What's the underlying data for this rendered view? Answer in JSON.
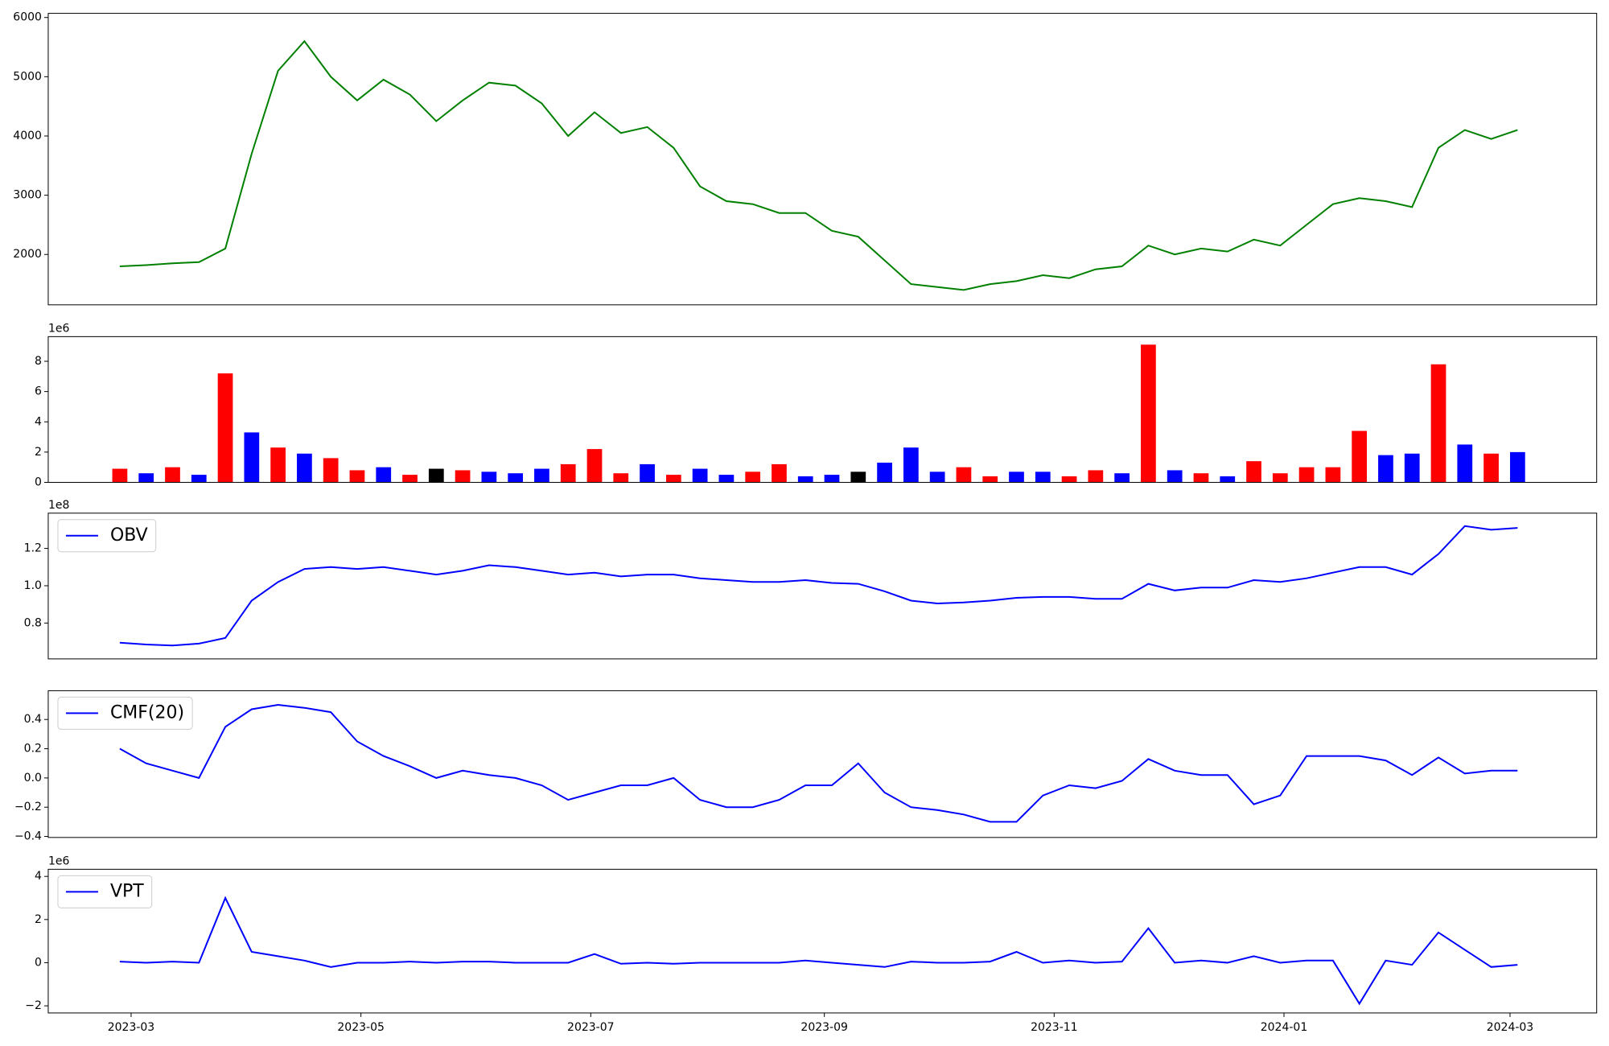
{
  "chart_data": [
    {
      "type": "line",
      "color": "green",
      "x": [
        "2023-02-26",
        "2023-03-05",
        "2023-03-12",
        "2023-03-19",
        "2023-03-26",
        "2023-04-02",
        "2023-04-09",
        "2023-04-16",
        "2023-04-23",
        "2023-04-30",
        "2023-05-07",
        "2023-05-14",
        "2023-05-21",
        "2023-05-28",
        "2023-06-04",
        "2023-06-11",
        "2023-06-18",
        "2023-06-25",
        "2023-07-02",
        "2023-07-09",
        "2023-07-16",
        "2023-07-23",
        "2023-07-30",
        "2023-08-06",
        "2023-08-13",
        "2023-08-20",
        "2023-08-27",
        "2023-09-03",
        "2023-09-10",
        "2023-09-17",
        "2023-09-24",
        "2023-10-01",
        "2023-10-08",
        "2023-10-15",
        "2023-10-22",
        "2023-10-29",
        "2023-11-05",
        "2023-11-12",
        "2023-11-19",
        "2023-11-26",
        "2023-12-03",
        "2023-12-10",
        "2023-12-17",
        "2023-12-24",
        "2023-12-31",
        "2024-01-07",
        "2024-01-14",
        "2024-01-21",
        "2024-01-28",
        "2024-02-04",
        "2024-02-11",
        "2024-02-18",
        "2024-02-25",
        "2024-03-03"
      ],
      "values": [
        1800,
        1820,
        1850,
        1870,
        2100,
        3700,
        5100,
        5600,
        5000,
        4600,
        4950,
        4700,
        4250,
        4600,
        4900,
        4850,
        4550,
        4000,
        4400,
        4050,
        4150,
        3800,
        3150,
        2900,
        2850,
        2700,
        2700,
        2400,
        2300,
        1900,
        1500,
        1450,
        1400,
        1500,
        1550,
        1650,
        1600,
        1750,
        1800,
        2150,
        2000,
        2100,
        2050,
        2250,
        2150,
        2500,
        2850,
        2950,
        2900,
        2800,
        3800,
        4100,
        3950,
        4100
      ],
      "xlim": [
        "2023-02-07",
        "2024-03-24"
      ],
      "ylim": [
        1150,
        6070
      ],
      "yticks": [
        2000,
        3000,
        4000,
        5000,
        6000
      ]
    },
    {
      "type": "bar",
      "y_offset_label": "1e6",
      "x": [
        "2023-02-26",
        "2023-03-05",
        "2023-03-12",
        "2023-03-19",
        "2023-03-26",
        "2023-04-02",
        "2023-04-09",
        "2023-04-16",
        "2023-04-23",
        "2023-04-30",
        "2023-05-07",
        "2023-05-14",
        "2023-05-21",
        "2023-05-28",
        "2023-06-04",
        "2023-06-11",
        "2023-06-18",
        "2023-06-25",
        "2023-07-02",
        "2023-07-09",
        "2023-07-16",
        "2023-07-23",
        "2023-07-30",
        "2023-08-06",
        "2023-08-13",
        "2023-08-20",
        "2023-08-27",
        "2023-09-03",
        "2023-09-10",
        "2023-09-17",
        "2023-09-24",
        "2023-10-01",
        "2023-10-08",
        "2023-10-15",
        "2023-10-22",
        "2023-10-29",
        "2023-11-05",
        "2023-11-12",
        "2023-11-19",
        "2023-11-26",
        "2023-12-03",
        "2023-12-10",
        "2023-12-17",
        "2023-12-24",
        "2023-12-31",
        "2024-01-07",
        "2024-01-14",
        "2024-01-21",
        "2024-01-28",
        "2024-02-04",
        "2024-02-11",
        "2024-02-18",
        "2024-02-25",
        "2024-03-03"
      ],
      "values": [
        0.9,
        0.6,
        1.0,
        0.5,
        7.2,
        3.3,
        2.3,
        1.9,
        1.6,
        0.8,
        1.0,
        0.5,
        0.9,
        0.8,
        0.7,
        0.6,
        0.9,
        1.2,
        2.2,
        0.6,
        1.2,
        0.5,
        0.9,
        0.5,
        0.7,
        1.2,
        0.4,
        0.5,
        0.7,
        1.3,
        2.3,
        0.7,
        1.0,
        0.4,
        0.7,
        0.7,
        0.4,
        0.8,
        0.6,
        9.1,
        0.8,
        0.6,
        0.4,
        1.4,
        0.6,
        1.0,
        1.0,
        3.4,
        1.8,
        1.9,
        7.8,
        2.5,
        1.9,
        2.0
      ],
      "colors": [
        "red",
        "blue",
        "red",
        "blue",
        "red",
        "blue",
        "red",
        "blue",
        "red",
        "red",
        "blue",
        "red",
        "black",
        "red",
        "blue",
        "blue",
        "blue",
        "red",
        "red",
        "red",
        "blue",
        "red",
        "blue",
        "blue",
        "red",
        "red",
        "blue",
        "blue",
        "black",
        "blue",
        "blue",
        "blue",
        "red",
        "red",
        "blue",
        "blue",
        "red",
        "red",
        "blue",
        "red",
        "blue",
        "red",
        "blue",
        "red",
        "red",
        "red",
        "red",
        "red",
        "blue",
        "blue",
        "red",
        "blue",
        "red",
        "blue"
      ],
      "xlim": [
        "2023-02-07",
        "2024-03-24"
      ],
      "ylim": [
        0,
        9.63
      ],
      "yticks": [
        0,
        2,
        4,
        6,
        8
      ]
    },
    {
      "type": "line",
      "y_offset_label": "1e8",
      "legend": "upper left",
      "x": [
        "2023-02-26",
        "2023-03-05",
        "2023-03-12",
        "2023-03-19",
        "2023-03-26",
        "2023-04-02",
        "2023-04-09",
        "2023-04-16",
        "2023-04-23",
        "2023-04-30",
        "2023-05-07",
        "2023-05-14",
        "2023-05-21",
        "2023-05-28",
        "2023-06-04",
        "2023-06-11",
        "2023-06-18",
        "2023-06-25",
        "2023-07-02",
        "2023-07-09",
        "2023-07-16",
        "2023-07-23",
        "2023-07-30",
        "2023-08-06",
        "2023-08-13",
        "2023-08-20",
        "2023-08-27",
        "2023-09-03",
        "2023-09-10",
        "2023-09-17",
        "2023-09-24",
        "2023-10-01",
        "2023-10-08",
        "2023-10-15",
        "2023-10-22",
        "2023-10-29",
        "2023-11-05",
        "2023-11-12",
        "2023-11-19",
        "2023-11-26",
        "2023-12-03",
        "2023-12-10",
        "2023-12-17",
        "2023-12-24",
        "2023-12-31",
        "2024-01-07",
        "2024-01-14",
        "2024-01-21",
        "2024-01-28",
        "2024-02-04",
        "2024-02-11",
        "2024-02-18",
        "2024-02-25",
        "2024-03-03"
      ],
      "series": [
        {
          "name": "OBV",
          "color": "blue",
          "values": [
            0.695,
            0.685,
            0.68,
            0.69,
            0.72,
            0.92,
            1.02,
            1.09,
            1.1,
            1.09,
            1.1,
            1.08,
            1.06,
            1.08,
            1.11,
            1.1,
            1.08,
            1.06,
            1.07,
            1.05,
            1.06,
            1.06,
            1.04,
            1.03,
            1.02,
            1.02,
            1.03,
            1.015,
            1.01,
            0.97,
            0.92,
            0.905,
            0.91,
            0.92,
            0.935,
            0.94,
            0.94,
            0.93,
            0.93,
            1.01,
            0.975,
            0.99,
            0.99,
            1.03,
            1.02,
            1.04,
            1.07,
            1.1,
            1.1,
            1.06,
            1.17,
            1.32,
            1.3,
            1.31
          ]
        }
      ],
      "xlim": [
        "2023-02-07",
        "2024-03-24"
      ],
      "ylim": [
        0.608,
        1.389
      ],
      "yticks": [
        {
          "value": 0.8,
          "label": "0.8"
        },
        {
          "value": 1.0,
          "label": "1.0"
        },
        {
          "value": 1.2,
          "label": "1.2"
        }
      ]
    },
    {
      "type": "line",
      "legend": "upper left",
      "x": [
        "2023-02-26",
        "2023-03-05",
        "2023-03-12",
        "2023-03-19",
        "2023-03-26",
        "2023-04-02",
        "2023-04-09",
        "2023-04-16",
        "2023-04-23",
        "2023-04-30",
        "2023-05-07",
        "2023-05-14",
        "2023-05-21",
        "2023-05-28",
        "2023-06-04",
        "2023-06-11",
        "2023-06-18",
        "2023-06-25",
        "2023-07-02",
        "2023-07-09",
        "2023-07-16",
        "2023-07-23",
        "2023-07-30",
        "2023-08-06",
        "2023-08-13",
        "2023-08-20",
        "2023-08-27",
        "2023-09-03",
        "2023-09-10",
        "2023-09-17",
        "2023-09-24",
        "2023-10-01",
        "2023-10-08",
        "2023-10-15",
        "2023-10-22",
        "2023-10-29",
        "2023-11-05",
        "2023-11-12",
        "2023-11-19",
        "2023-11-26",
        "2023-12-03",
        "2023-12-10",
        "2023-12-17",
        "2023-12-24",
        "2023-12-31",
        "2024-01-07",
        "2024-01-14",
        "2024-01-21",
        "2024-01-28",
        "2024-02-04",
        "2024-02-11",
        "2024-02-18",
        "2024-02-25",
        "2024-03-03"
      ],
      "series": [
        {
          "name": "CMF(20)",
          "color": "blue",
          "values": [
            0.2,
            0.1,
            0.05,
            0,
            0.35,
            0.47,
            0.5,
            0.48,
            0.45,
            0.25,
            0.15,
            0.08,
            0,
            0.05,
            0.02,
            0,
            -0.05,
            -0.15,
            -0.1,
            -0.05,
            -0.05,
            0,
            -0.15,
            -0.2,
            -0.2,
            -0.15,
            -0.05,
            -0.05,
            0.1,
            -0.1,
            -0.2,
            -0.22,
            -0.25,
            -0.3,
            -0.3,
            -0.12,
            -0.05,
            -0.07,
            -0.02,
            0.13,
            0.05,
            0.02,
            0.02,
            -0.18,
            -0.12,
            0.15,
            0.15,
            0.15,
            0.12,
            0.02,
            0.14,
            0.03,
            0.05,
            0.05
          ]
        }
      ],
      "xlim": [
        "2023-02-07",
        "2024-03-24"
      ],
      "ylim": [
        -0.407,
        0.597
      ],
      "yticks": [
        {
          "value": -0.4,
          "label": "−0.4"
        },
        {
          "value": -0.2,
          "label": "−0.2"
        },
        {
          "value": 0,
          "label": "0.0"
        },
        0.2,
        0.4
      ]
    },
    {
      "type": "line",
      "y_offset_label": "1e6",
      "legend": "upper left",
      "x": [
        "2023-02-26",
        "2023-03-05",
        "2023-03-12",
        "2023-03-19",
        "2023-03-26",
        "2023-04-02",
        "2023-04-09",
        "2023-04-16",
        "2023-04-23",
        "2023-04-30",
        "2023-05-07",
        "2023-05-14",
        "2023-05-21",
        "2023-05-28",
        "2023-06-04",
        "2023-06-11",
        "2023-06-18",
        "2023-06-25",
        "2023-07-02",
        "2023-07-09",
        "2023-07-16",
        "2023-07-23",
        "2023-07-30",
        "2023-08-06",
        "2023-08-13",
        "2023-08-20",
        "2023-08-27",
        "2023-09-03",
        "2023-09-10",
        "2023-09-17",
        "2023-09-24",
        "2023-10-01",
        "2023-10-08",
        "2023-10-15",
        "2023-10-22",
        "2023-10-29",
        "2023-11-05",
        "2023-11-12",
        "2023-11-19",
        "2023-11-26",
        "2023-12-03",
        "2023-12-10",
        "2023-12-17",
        "2023-12-24",
        "2023-12-31",
        "2024-01-07",
        "2024-01-14",
        "2024-01-21",
        "2024-01-28",
        "2024-02-04",
        "2024-02-11",
        "2024-02-18",
        "2024-02-25",
        "2024-03-03"
      ],
      "series": [
        {
          "name": "VPT",
          "color": "blue",
          "values": [
            0.05,
            0,
            0.05,
            0,
            3.0,
            0.5,
            0.3,
            0.1,
            -0.2,
            0,
            0,
            0.05,
            0,
            0.05,
            0.05,
            0,
            0,
            0,
            0.4,
            -0.05,
            0,
            -0.05,
            0,
            0,
            0,
            0,
            0.1,
            0,
            -0.1,
            -0.2,
            0.05,
            0,
            0,
            0.05,
            0.5,
            0,
            0.1,
            0,
            0.05,
            1.6,
            0,
            0.1,
            0,
            0.3,
            0,
            0.1,
            0.1,
            -1.9,
            0.1,
            -0.1,
            1.4,
            0.6,
            -0.2,
            -0.1
          ]
        }
      ],
      "xlim": [
        "2023-02-07",
        "2024-03-24"
      ],
      "ylim": [
        -2.33,
        4.33
      ],
      "yticks": [
        {
          "value": -2,
          "label": "−2"
        },
        0,
        2,
        4
      ],
      "xticks": [
        {
          "value": "2023-03-01",
          "label": "2023-03"
        },
        {
          "value": "2023-05-01",
          "label": "2023-05"
        },
        {
          "value": "2023-07-01",
          "label": "2023-07"
        },
        {
          "value": "2023-09-01",
          "label": "2023-09"
        },
        {
          "value": "2023-11-01",
          "label": "2023-11"
        },
        {
          "value": "2024-01-01",
          "label": "2024-01"
        },
        {
          "value": "2024-03-01",
          "label": "2024-03"
        }
      ]
    }
  ]
}
